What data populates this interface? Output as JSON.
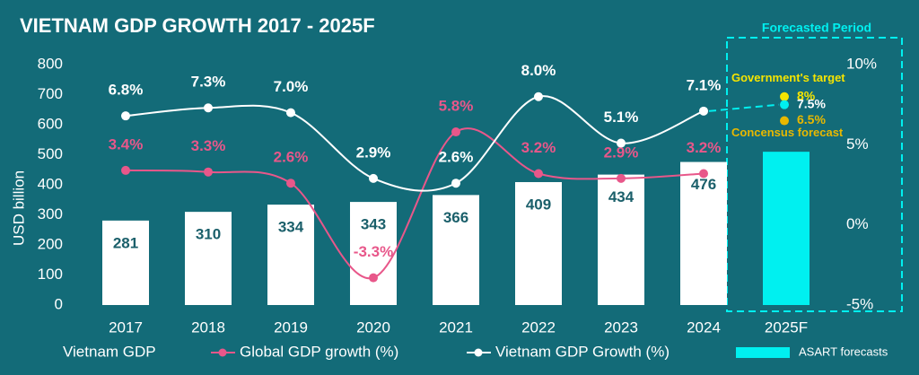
{
  "chart_data": {
    "type": "bar",
    "title": "VIETNAM GDP GROWTH 2017 - 2025F",
    "y_label": "USD billion",
    "categories": [
      "2017",
      "2018",
      "2019",
      "2020",
      "2021",
      "2022",
      "2023",
      "2024",
      "2025F"
    ],
    "ylim": [
      0,
      800
    ],
    "yticks": [
      0,
      100,
      200,
      300,
      400,
      500,
      600,
      700,
      800
    ],
    "y2lim": [
      -5,
      10
    ],
    "y2ticks": [
      {
        "value": -5,
        "label": "-5%"
      },
      {
        "value": 0,
        "label": "0%"
      },
      {
        "value": 5,
        "label": "5%"
      },
      {
        "value": 10,
        "label": "10%"
      }
    ],
    "series": [
      {
        "name": "Vietnam GDP",
        "type": "bar",
        "color": "#ffffff",
        "values": [
          281,
          310,
          334,
          343,
          366,
          409,
          434,
          476,
          null
        ]
      },
      {
        "name": "ASART forecasts",
        "type": "bar",
        "color": "#00f0f0",
        "values": [
          null,
          null,
          null,
          null,
          null,
          null,
          null,
          null,
          510
        ]
      },
      {
        "name": "Global GDP growth (%)",
        "type": "line",
        "axis": "y2",
        "color": "#e8578a",
        "values": [
          3.4,
          3.3,
          2.6,
          -3.3,
          5.8,
          3.2,
          2.9,
          3.2,
          null
        ],
        "value_labels": [
          "3.4%",
          "3.3%",
          "2.6%",
          "-3.3%",
          "5.8%",
          "3.2%",
          "2.9%",
          "3.2%",
          null
        ]
      },
      {
        "name": "Vietnam GDP Growth (%)",
        "type": "line",
        "axis": "y2",
        "color": "#ffffff",
        "values": [
          6.8,
          7.3,
          7.0,
          2.9,
          2.6,
          8.0,
          5.1,
          7.1,
          null
        ],
        "value_labels": [
          "6.8%",
          "7.3%",
          "7.0%",
          "2.9%",
          "2.6%",
          "8.0%",
          "5.1%",
          "7.1%",
          null
        ]
      }
    ],
    "forecast": {
      "title": "Forecasted Period",
      "points": [
        {
          "name": "Government's target",
          "value": 8,
          "value_label": "8%",
          "color": "#f5e400"
        },
        {
          "value": 7.5,
          "value_label": "7.5%",
          "color": "#00f0f0"
        },
        {
          "name": "Concensus forecast",
          "value": 6.5,
          "value_label": "6.5%",
          "color": "#e8b800"
        }
      ]
    }
  }
}
